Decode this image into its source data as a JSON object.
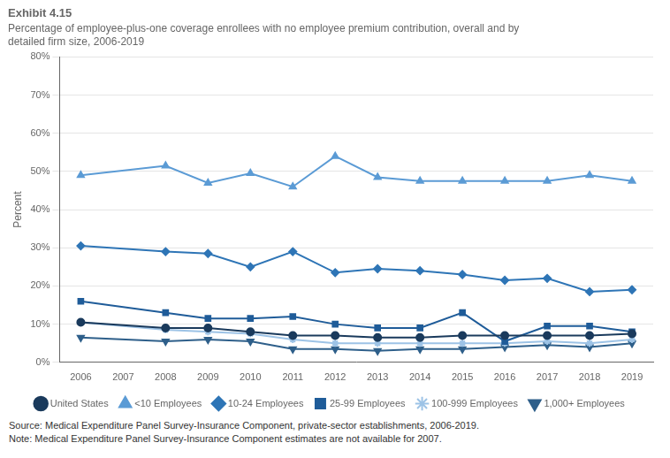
{
  "chart_data": {
    "type": "line",
    "title": "Exhibit 4.15",
    "subtitle": "Percentage of employee-plus-one coverage enrollees with no employee premium contribution, overall and by\ndetailed firm size, 2006-2019",
    "y_label": "Percent",
    "x": [
      2006,
      2007,
      2008,
      2009,
      2010,
      2011,
      2012,
      2013,
      2014,
      2015,
      2016,
      2017,
      2018,
      2019
    ],
    "series": [
      {
        "name": "United States",
        "color": "#1a3a5c",
        "marker": "circle",
        "line_style": "solid",
        "values": [
          10.5,
          null,
          9.0,
          9.0,
          8.0,
          7.0,
          7.0,
          6.5,
          6.5,
          7.0,
          7.0,
          7.0,
          7.0,
          7.5
        ]
      },
      {
        "name": "<10 Employees",
        "color": "#5b9bd5",
        "marker": "triangle",
        "line_style": "solid",
        "values": [
          49.0,
          null,
          51.5,
          47.0,
          49.5,
          46.0,
          54.0,
          48.5,
          47.5,
          47.5,
          47.5,
          47.5,
          49.0,
          47.5
        ]
      },
      {
        "name": "10-24 Employees",
        "color": "#2e75b6",
        "marker": "diamond",
        "line_style": "solid",
        "values": [
          30.5,
          null,
          29.0,
          28.5,
          25.0,
          29.0,
          23.5,
          24.5,
          24.0,
          23.0,
          21.5,
          22.0,
          18.5,
          19.0
        ]
      },
      {
        "name": "25-99 Employees",
        "color": "#1f5c99",
        "marker": "square",
        "line_style": "solid",
        "values": [
          16.0,
          null,
          13.0,
          11.5,
          11.5,
          12.0,
          10.0,
          9.0,
          9.0,
          13.0,
          5.5,
          9.5,
          9.5,
          8.0
        ]
      },
      {
        "name": "100-999 Employees",
        "color": "#9dc3e6",
        "marker": "star",
        "line_style": "solid",
        "values": [
          10.5,
          null,
          8.5,
          8.0,
          7.5,
          6.0,
          5.0,
          5.0,
          5.0,
          5.0,
          5.0,
          5.5,
          5.0,
          6.0
        ]
      },
      {
        "name": "1,000+ Employees",
        "color": "#2e5f8a",
        "marker": "triangle_down",
        "line_style": "solid",
        "values": [
          6.5,
          null,
          5.5,
          6.0,
          5.5,
          3.5,
          3.5,
          3.0,
          3.5,
          3.5,
          4.0,
          4.5,
          4.0,
          5.0
        ]
      }
    ],
    "xlim": [
      2005.5,
      2019.5
    ],
    "xticks": [
      2006,
      2007,
      2008,
      2009,
      2010,
      2011,
      2012,
      2013,
      2014,
      2015,
      2016,
      2017,
      2018,
      2019
    ],
    "ylim": [
      0,
      80
    ],
    "yticks": [
      {
        "value": 0,
        "label": "0%"
      },
      {
        "value": 10,
        "label": "10%"
      },
      {
        "value": 20,
        "label": "20%"
      },
      {
        "value": 30,
        "label": "30%"
      },
      {
        "value": 40,
        "label": "40%"
      },
      {
        "value": 50,
        "label": "50%"
      },
      {
        "value": 60,
        "label": "60%"
      },
      {
        "value": 70,
        "label": "70%"
      },
      {
        "value": 80,
        "label": "80%"
      }
    ],
    "grid": "y",
    "legend": "bottom",
    "annotations": [
      "Source: Medical Expenditure Panel Survey-Insurance Component, private-sector establishments, 2006-2019.",
      "Note: Medical Expenditure Panel Survey-Insurance Component estimates are not available for 2007."
    ]
  }
}
